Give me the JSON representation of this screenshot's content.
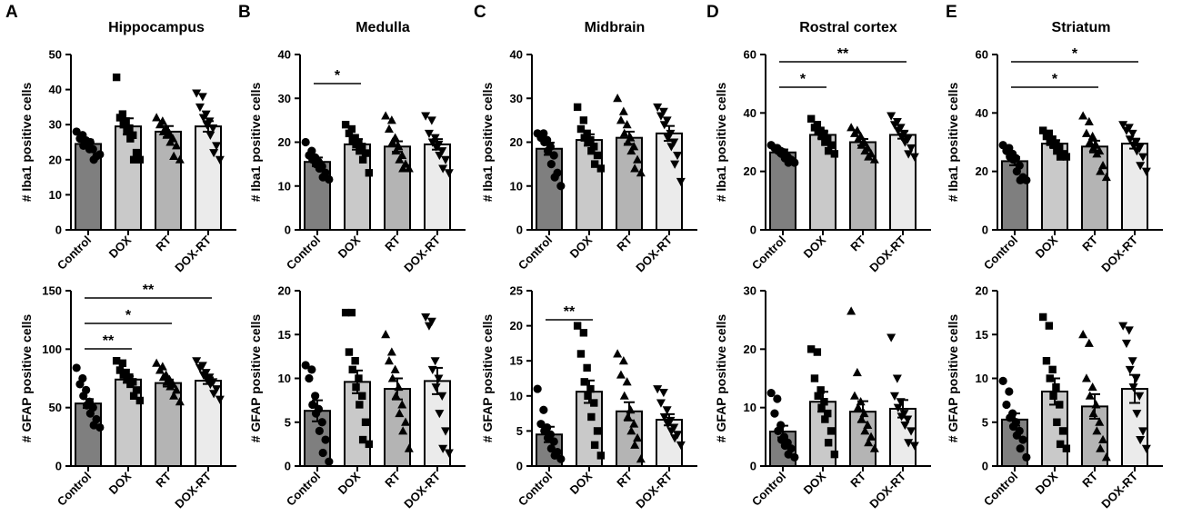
{
  "categories": [
    "Control",
    "DOX",
    "RT",
    "DOX-RT"
  ],
  "colors": {
    "bars": [
      "#7f7f7f",
      "#c9c9c9",
      "#b4b4b4",
      "#ebebeb"
    ],
    "ink": "#000000"
  },
  "markers": [
    "circle",
    "square",
    "triangle-up",
    "triangle-down"
  ],
  "chart_data": [
    {
      "panel": "A",
      "title": "Hippocampus",
      "type": "bar",
      "ylabel": "# Iba1 positive cells",
      "ylim": [
        0,
        50
      ],
      "yticks": [
        0,
        10,
        20,
        30,
        40,
        50
      ],
      "values": [
        24.5,
        29.5,
        28.0,
        29.5
      ],
      "sem": [
        1.2,
        2.3,
        1.6,
        1.5
      ],
      "points": [
        [
          28,
          27,
          26,
          25.5,
          24,
          23,
          25,
          23,
          25,
          21,
          20,
          21.5
        ],
        [
          43.5,
          33,
          32,
          31,
          30,
          29,
          28,
          27,
          26,
          22,
          20,
          20
        ],
        [
          32,
          31,
          30,
          29,
          28,
          27.5,
          27,
          26,
          25,
          24,
          21,
          20
        ],
        [
          39,
          38,
          35,
          33,
          32,
          31,
          30,
          29,
          27,
          24,
          22,
          20
        ]
      ],
      "significance": []
    },
    {
      "panel": "B",
      "title": "Medulla",
      "type": "bar",
      "ylabel": "# Iba1 positive cells",
      "ylim": [
        0,
        40
      ],
      "yticks": [
        0,
        10,
        20,
        30,
        40
      ],
      "values": [
        15.5,
        19.5,
        19.0,
        19.5
      ],
      "sem": [
        1.0,
        1.2,
        1.2,
        1.2
      ],
      "points": [
        [
          20,
          18,
          17,
          16.5,
          16,
          15.5,
          15,
          14.5,
          14,
          13,
          12,
          11.5
        ],
        [
          24,
          23,
          22,
          21,
          20.5,
          20,
          19.5,
          19,
          18,
          17.5,
          16,
          13
        ],
        [
          26,
          25,
          23,
          21,
          20,
          19,
          18,
          17,
          16,
          15,
          14,
          14
        ],
        [
          26,
          25,
          22,
          21,
          20,
          19.5,
          19,
          18,
          17,
          16,
          14,
          13
        ]
      ],
      "significance": [
        {
          "from": 0,
          "to": 1,
          "label": "*"
        }
      ]
    },
    {
      "panel": "C",
      "title": "Midbrain",
      "type": "bar",
      "ylabel": "# Iba1 positive cells",
      "ylim": [
        0,
        40
      ],
      "yticks": [
        0,
        10,
        20,
        30,
        40
      ],
      "values": [
        18.5,
        20.5,
        21.0,
        22.0
      ],
      "sem": [
        1.4,
        1.3,
        1.4,
        1.7
      ],
      "points": [
        [
          22,
          22,
          21,
          20.5,
          20,
          19,
          18,
          17,
          15,
          13,
          12,
          10
        ],
        [
          28,
          25,
          23,
          22,
          21,
          20.5,
          20,
          19,
          18,
          17,
          15,
          14
        ],
        [
          30,
          27,
          25,
          24,
          22,
          21,
          20,
          19,
          18,
          16,
          14,
          13
        ],
        [
          28,
          27,
          26,
          25,
          24,
          22,
          21,
          20,
          19,
          17,
          15,
          11
        ]
      ],
      "significance": []
    },
    {
      "panel": "D",
      "title": "Rostral cortex",
      "type": "bar",
      "ylabel": "# Iba1 positive cells",
      "ylim": [
        0,
        60
      ],
      "yticks": [
        0,
        20,
        40,
        60
      ],
      "values": [
        26.5,
        32.5,
        30.0,
        32.5
      ],
      "sem": [
        1.0,
        1.2,
        1.1,
        1.3
      ],
      "points": [
        [
          29,
          28,
          28,
          27,
          27,
          26.5,
          26,
          25,
          24.5,
          24,
          23,
          23
        ],
        [
          38,
          36,
          35,
          34,
          33.5,
          33,
          32,
          31,
          30,
          29,
          27,
          26
        ],
        [
          35,
          34,
          33,
          32,
          31,
          30,
          29,
          28,
          27,
          26,
          25,
          24
        ],
        [
          39,
          37,
          36,
          35,
          34,
          33,
          32,
          31,
          30,
          28,
          26,
          25
        ]
      ],
      "significance": [
        {
          "from": 0,
          "to": 1,
          "label": "*"
        },
        {
          "from": 0,
          "to": 3,
          "label": "**"
        }
      ]
    },
    {
      "panel": "E",
      "title": "Striatum",
      "type": "bar",
      "ylabel": "# Iba1 positive cells",
      "ylim": [
        0,
        60
      ],
      "yticks": [
        0,
        20,
        40,
        60
      ],
      "values": [
        23.5,
        29.5,
        28.5,
        29.5
      ],
      "sem": [
        1.4,
        1.2,
        2.0,
        1.7
      ],
      "points": [
        [
          29,
          28,
          27,
          26,
          25,
          24.5,
          24,
          22,
          20,
          18,
          17,
          17
        ],
        [
          34,
          33,
          32,
          31,
          30,
          29.5,
          29,
          28,
          27,
          26,
          25,
          25
        ],
        [
          39,
          37,
          33,
          32,
          30,
          29,
          28,
          27,
          26,
          22,
          20,
          18
        ],
        [
          36,
          35,
          34,
          33,
          31,
          30,
          29,
          28,
          27,
          25,
          22,
          20
        ]
      ],
      "significance": [
        {
          "from": 0,
          "to": 2,
          "label": "*"
        },
        {
          "from": 0,
          "to": 3,
          "label": "*"
        }
      ]
    },
    {
      "panel": "A",
      "title": "",
      "type": "bar",
      "ylabel": "# GFAP positive cells",
      "ylim": [
        0,
        150
      ],
      "yticks": [
        0,
        50,
        100,
        150
      ],
      "values": [
        53.5,
        74.0,
        71.0,
        73.0
      ],
      "sem": [
        3.8,
        2.8,
        3.0,
        2.8
      ],
      "points": [
        [
          84,
          75,
          70,
          65,
          60,
          55,
          52,
          50,
          45,
          40,
          35,
          33
        ],
        [
          90,
          88,
          82,
          80,
          78,
          76,
          74,
          72,
          70,
          65,
          60,
          56
        ],
        [
          88,
          85,
          82,
          78,
          76,
          74,
          72,
          70,
          68,
          65,
          60,
          55
        ],
        [
          90,
          86,
          84,
          80,
          78,
          76,
          74,
          72,
          70,
          66,
          62,
          57
        ]
      ],
      "significance": [
        {
          "from": 0,
          "to": 1,
          "label": "**"
        },
        {
          "from": 0,
          "to": 2,
          "label": "*"
        },
        {
          "from": 0,
          "to": 3,
          "label": "**"
        }
      ]
    },
    {
      "panel": "B",
      "title": "",
      "type": "bar",
      "ylabel": "# GFAP positive cells",
      "ylim": [
        0,
        20
      ],
      "yticks": [
        0,
        5,
        10,
        15,
        20
      ],
      "values": [
        6.3,
        9.6,
        8.8,
        9.7
      ],
      "sem": [
        1.2,
        1.3,
        1.2,
        1.5
      ],
      "points": [
        [
          11.5,
          11,
          10,
          8,
          7,
          6.5,
          6,
          5,
          4,
          3,
          1.5,
          0.5
        ],
        [
          17.5,
          17.5,
          13,
          12,
          11,
          10,
          9,
          8,
          7,
          5,
          3,
          2.5
        ],
        [
          15,
          13,
          12,
          11,
          10,
          9,
          8,
          7,
          6,
          5,
          4,
          2
        ],
        [
          17,
          16.5,
          16,
          12,
          11,
          10,
          9,
          8,
          6,
          4,
          2,
          1.5
        ]
      ],
      "significance": []
    },
    {
      "panel": "C",
      "title": "",
      "type": "bar",
      "ylabel": "# GFAP positive cells",
      "ylim": [
        0,
        25
      ],
      "yticks": [
        0,
        5,
        10,
        15,
        20,
        25
      ],
      "values": [
        4.5,
        10.6,
        7.8,
        6.6
      ],
      "sem": [
        1.1,
        1.6,
        1.3,
        0.8
      ],
      "points": [
        [
          11,
          8,
          6,
          5.5,
          5,
          4.5,
          4,
          3.5,
          2.5,
          2,
          1.5,
          1
        ],
        [
          20,
          19,
          16,
          14,
          12,
          11,
          10,
          9,
          7,
          5,
          3,
          1.5
        ],
        [
          16,
          15,
          13,
          12,
          10,
          8,
          7,
          6,
          5,
          4,
          3,
          1
        ],
        [
          11,
          10.5,
          9,
          8,
          7,
          6.5,
          6,
          5.5,
          5,
          4.5,
          4,
          3
        ]
      ],
      "significance": [
        {
          "from": 0,
          "to": 1,
          "label": "**"
        }
      ]
    },
    {
      "panel": "D",
      "title": "",
      "type": "bar",
      "ylabel": "# GFAP positive cells",
      "ylim": [
        0,
        30
      ],
      "yticks": [
        0,
        10,
        20,
        30
      ],
      "values": [
        5.9,
        11.0,
        9.3,
        9.8
      ],
      "sem": [
        1.0,
        1.7,
        1.8,
        1.5
      ],
      "points": [
        [
          12.5,
          11.5,
          9,
          7,
          6,
          5,
          4.5,
          4,
          3.5,
          3,
          2,
          1.5
        ],
        [
          20,
          19.5,
          15,
          13,
          12,
          11,
          10,
          9,
          8,
          6,
          4,
          2
        ],
        [
          26.5,
          16,
          12,
          11,
          10,
          9,
          8,
          7,
          6,
          5,
          4,
          3
        ],
        [
          22,
          15,
          12,
          11,
          10,
          9,
          8.5,
          8,
          7,
          6,
          4,
          3.5
        ]
      ],
      "significance": []
    },
    {
      "panel": "E",
      "title": "",
      "type": "bar",
      "ylabel": "# GFAP positive cells",
      "ylim": [
        0,
        20
      ],
      "yticks": [
        0,
        5,
        10,
        15,
        20
      ],
      "values": [
        5.3,
        8.5,
        6.8,
        8.8
      ],
      "sem": [
        0.7,
        1.5,
        1.4,
        1.6
      ],
      "points": [
        [
          9.7,
          8.5,
          7,
          6,
          5.5,
          5,
          4.5,
          4,
          3.5,
          3,
          2,
          1
        ],
        [
          17,
          16,
          12,
          11,
          10,
          9,
          8,
          7,
          5,
          4,
          2.5,
          2
        ],
        [
          15,
          14,
          10,
          9,
          8,
          7,
          6,
          5,
          4,
          3,
          2,
          1
        ],
        [
          16,
          15.5,
          14,
          12,
          11,
          10,
          9,
          8,
          6,
          4,
          3,
          2
        ]
      ],
      "significance": []
    }
  ]
}
